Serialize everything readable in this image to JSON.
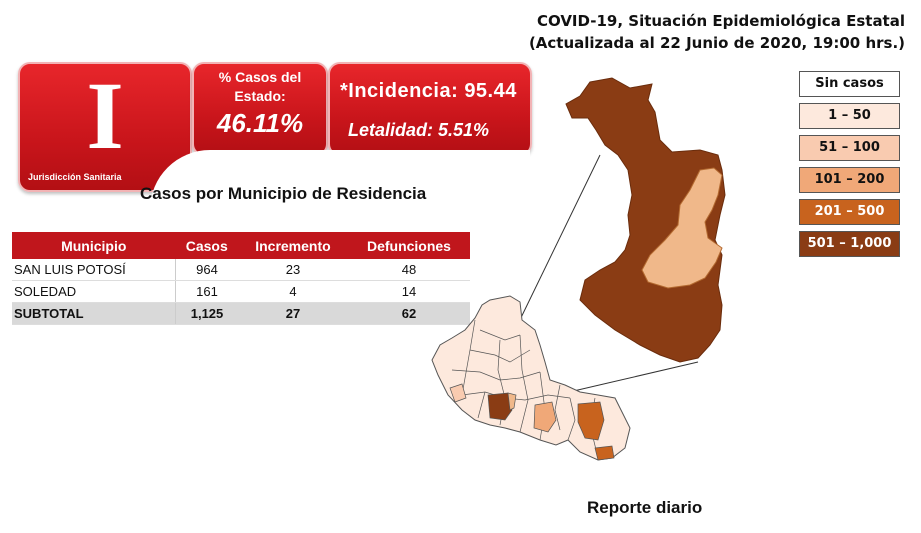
{
  "header": {
    "title_line1": "COVID-19, Situación Epidemiológica Estatal",
    "title_line2": "(Actualizada al 22 Junio de 2020, 19:00 hrs.)"
  },
  "jurisdiction": {
    "numeral": "I",
    "label": "Jurisdicción Sanitaria"
  },
  "state_cases": {
    "label": "% Casos del Estado:",
    "value": "46.11%"
  },
  "indicators": {
    "incidence": "*Incidencia: 95.44",
    "lethality": "Letalidad: 5.51%"
  },
  "table": {
    "title": "Casos por Municipio  de Residencia",
    "headers": [
      "Municipio",
      "Casos",
      "Incremento",
      "Defunciones"
    ],
    "rows": [
      [
        "SAN LUIS POTOSÍ",
        "964",
        "23",
        "48"
      ],
      [
        "SOLEDAD",
        "161",
        "4",
        "14"
      ]
    ],
    "subtotal": [
      "SUBTOTAL",
      "1,125",
      "27",
      "62"
    ]
  },
  "legend": [
    {
      "label": "Sin casos",
      "color": "#ffffff"
    },
    {
      "label": "1 – 50",
      "color": "#fde9dd"
    },
    {
      "label": "51 – 100",
      "color": "#f9cbb0"
    },
    {
      "label": "101 – 200",
      "color": "#f0a878"
    },
    {
      "label": "201 – 500",
      "color": "#c8631e"
    },
    {
      "label": "501 – 1,000",
      "color": "#8a3c14"
    }
  ],
  "map_colors": {
    "san_luis_potosi": "#8a3c14",
    "soledad": "#f0b88a",
    "zoom_line": "#333333"
  },
  "footer": "Reporte diario"
}
